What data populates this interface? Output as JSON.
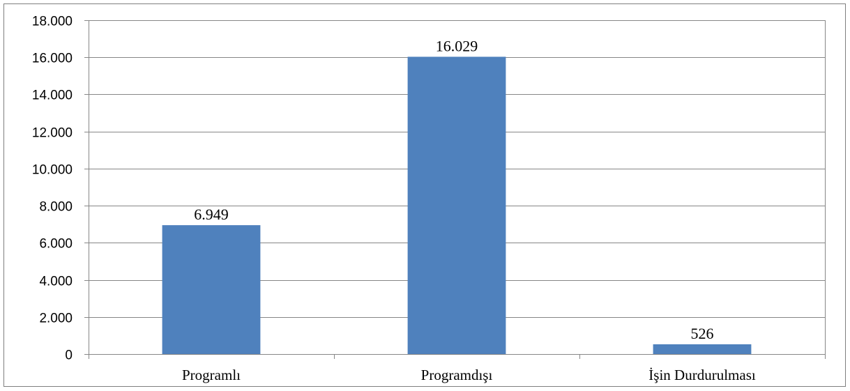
{
  "chart_data": {
    "type": "bar",
    "categories": [
      "Programlı",
      "Programdışı",
      "İşin Durdurulması"
    ],
    "values": [
      6949,
      16029,
      526
    ],
    "data_labels": [
      "6.949",
      "16.029",
      "526"
    ],
    "ylim": [
      0,
      18000
    ],
    "yticks": [
      0,
      2000,
      4000,
      6000,
      8000,
      10000,
      12000,
      14000,
      16000,
      18000
    ],
    "ytick_labels": [
      "0",
      "2.000",
      "4.000",
      "6.000",
      "8.000",
      "10.000",
      "12.000",
      "14.000",
      "16.000",
      "18.000"
    ],
    "grid": true,
    "legend": "none",
    "bar_color": "#4f81bd",
    "grid_color": "#868686"
  }
}
